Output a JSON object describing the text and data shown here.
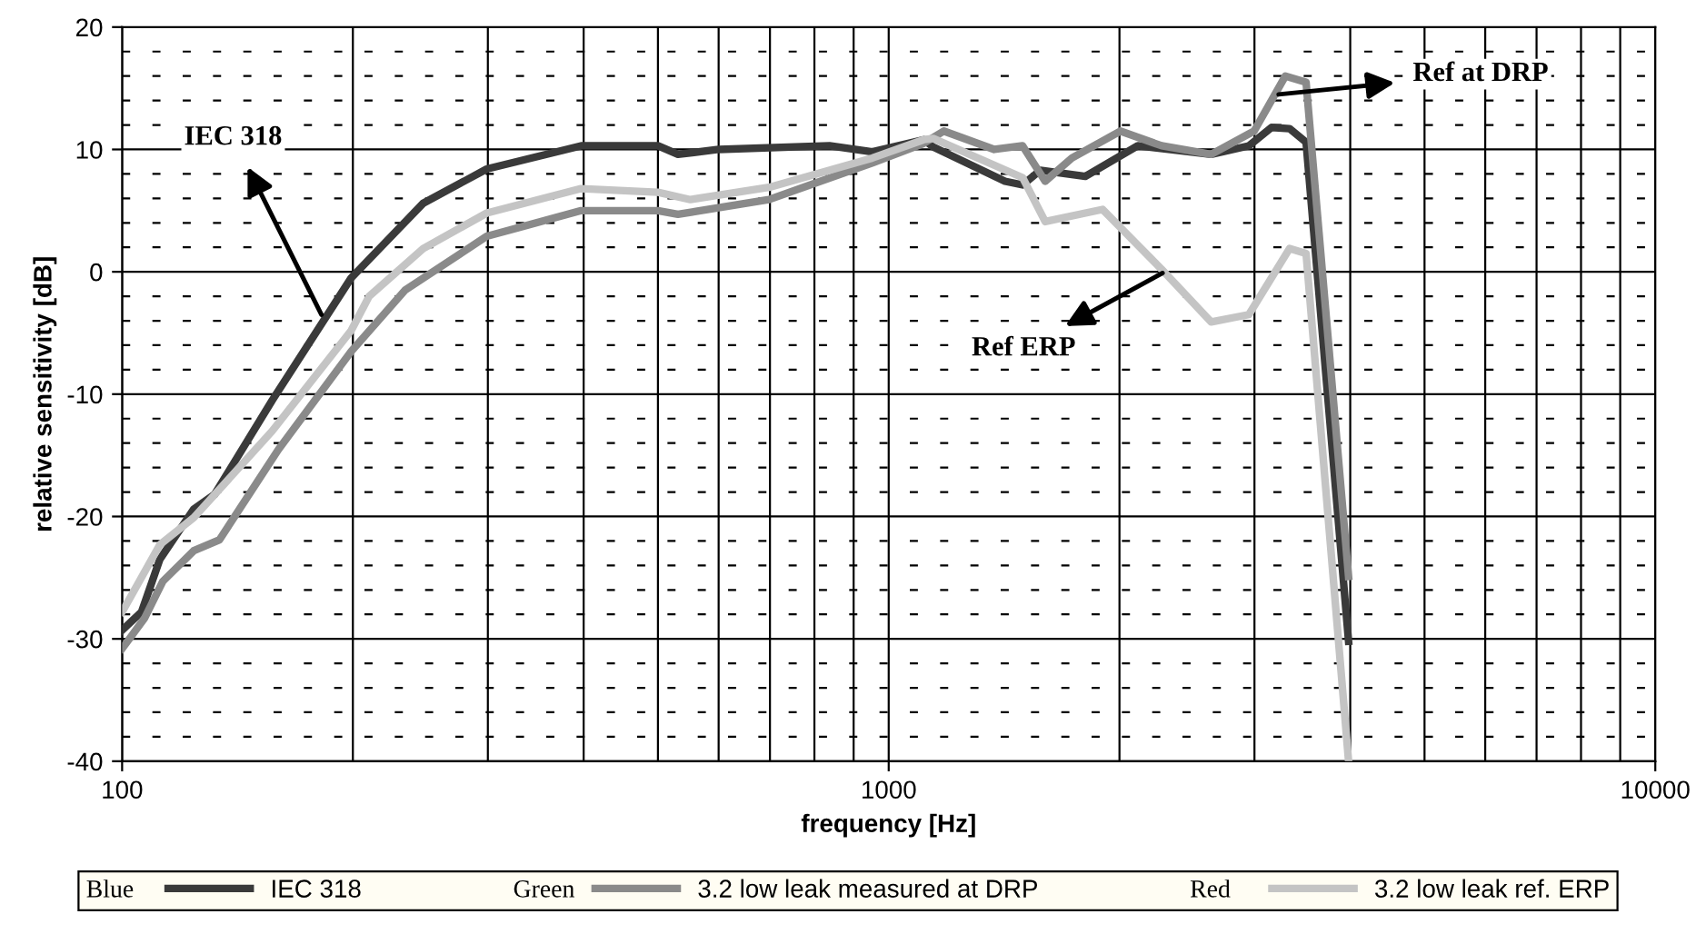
{
  "chart_data": {
    "type": "line",
    "xlabel": "frequency [Hz]",
    "ylabel": "relative sensitivity [dB]",
    "log": "x",
    "xlim": [
      100,
      10000
    ],
    "xticks": [
      100,
      {
        "value": 200,
        "label": null
      },
      {
        "value": 300,
        "label": null
      },
      {
        "value": 400,
        "label": null
      },
      {
        "value": 500,
        "label": null
      },
      {
        "value": 600,
        "label": null
      },
      {
        "value": 700,
        "label": null
      },
      {
        "value": 800,
        "label": null
      },
      {
        "value": 900,
        "label": null
      },
      1000,
      {
        "value": 2000,
        "label": null
      },
      {
        "value": 3000,
        "label": null
      },
      {
        "value": 4000,
        "label": null
      },
      {
        "value": 5000,
        "label": null
      },
      {
        "value": 6000,
        "label": null
      },
      {
        "value": 7000,
        "label": null
      },
      {
        "value": 8000,
        "label": null
      },
      {
        "value": 9000,
        "label": null
      },
      10000
    ],
    "ylim": [
      -40,
      20
    ],
    "yticks": [
      -40,
      {
        "value": -38,
        "label": null
      },
      {
        "value": -36,
        "label": null
      },
      {
        "value": -34,
        "label": null
      },
      {
        "value": -32,
        "label": null
      },
      -30,
      {
        "value": -28,
        "label": null
      },
      {
        "value": -26,
        "label": null
      },
      {
        "value": -24,
        "label": null
      },
      {
        "value": -22,
        "label": null
      },
      -20,
      {
        "value": -18,
        "label": null
      },
      {
        "value": -16,
        "label": null
      },
      {
        "value": -14,
        "label": null
      },
      {
        "value": -12,
        "label": null
      },
      -10,
      {
        "value": -8,
        "label": null
      },
      {
        "value": -6,
        "label": null
      },
      {
        "value": -4,
        "label": null
      },
      {
        "value": -2,
        "label": null
      },
      0,
      {
        "value": 2,
        "label": null
      },
      {
        "value": 4,
        "label": null
      },
      {
        "value": 6,
        "label": null
      },
      {
        "value": 8,
        "label": null
      },
      10,
      {
        "value": 12,
        "label": null
      },
      {
        "value": 14,
        "label": null
      },
      {
        "value": 16,
        "label": null
      },
      {
        "value": 18,
        "label": null
      },
      20
    ],
    "grid": true,
    "legend": "bottom",
    "marker": "none",
    "line_style": "solid",
    "series": [
      {
        "name": "IEC 318",
        "color": "#3a3a3a",
        "x": [
          100,
          106,
          112,
          124,
          132,
          157,
          199,
          247,
          299,
          397,
          500,
          531,
          600,
          837,
          952,
          1111,
          1143,
          1418,
          1495,
          1577,
          1805,
          2113,
          2634,
          2950,
          3158,
          3333,
          3503,
          3980
        ],
        "values": [
          -29.3,
          -27.8,
          -23.5,
          -19.4,
          -18.2,
          -10.5,
          -0.5,
          5.6,
          8.4,
          10.3,
          10.3,
          9.6,
          10.0,
          10.3,
          9.8,
          10.8,
          10.2,
          7.4,
          7.1,
          8.3,
          7.8,
          10.3,
          9.6,
          10.3,
          11.8,
          11.7,
          10.6,
          -30.2
        ]
      },
      {
        "name": "3.2 low leak measured at DRP",
        "color": "#8a8a8a",
        "x": [
          100,
          107,
          113,
          124,
          134,
          160,
          199,
          234,
          299,
          397,
          500,
          531,
          698,
          952,
          1111,
          1180,
          1373,
          1495,
          1600,
          1734,
          2005,
          2270,
          2634,
          2997,
          3292,
          3503,
          3980
        ],
        "values": [
          -30.8,
          -28.3,
          -25.3,
          -22.8,
          -21.9,
          -14.5,
          -6.5,
          -1.5,
          2.9,
          5.0,
          5.0,
          4.7,
          5.9,
          8.9,
          10.5,
          11.5,
          10.0,
          10.3,
          7.4,
          9.3,
          11.5,
          10.3,
          9.6,
          11.5,
          16.0,
          15.5,
          -24.9
        ]
      },
      {
        "name": "3.2 low leak ref. ERP",
        "color": "#c4c4c4",
        "x": [
          100,
          112,
          124,
          157,
          199,
          210,
          247,
          299,
          397,
          500,
          551,
          698,
          952,
          1111,
          1143,
          1495,
          1600,
          1901,
          2270,
          2634,
          2950,
          3333,
          3503,
          3980
        ],
        "values": [
          -27.8,
          -22.3,
          -20.1,
          -13.0,
          -4.8,
          -2.0,
          1.9,
          4.8,
          6.8,
          6.5,
          5.9,
          6.9,
          9.3,
          10.8,
          10.9,
          7.7,
          4.1,
          5.1,
          0.2,
          -4.1,
          -3.5,
          1.9,
          1.5,
          -40
        ]
      }
    ],
    "annotations": [
      {
        "text": "IEC 318",
        "x": 182,
        "y": -3.5
      },
      {
        "text": "Ref at DRP",
        "x": 3226,
        "y": 14.5
      },
      {
        "text": "Ref ERP",
        "x": 2276,
        "y": -0.1
      },
      "Blue",
      "Green",
      "Red"
    ]
  }
}
